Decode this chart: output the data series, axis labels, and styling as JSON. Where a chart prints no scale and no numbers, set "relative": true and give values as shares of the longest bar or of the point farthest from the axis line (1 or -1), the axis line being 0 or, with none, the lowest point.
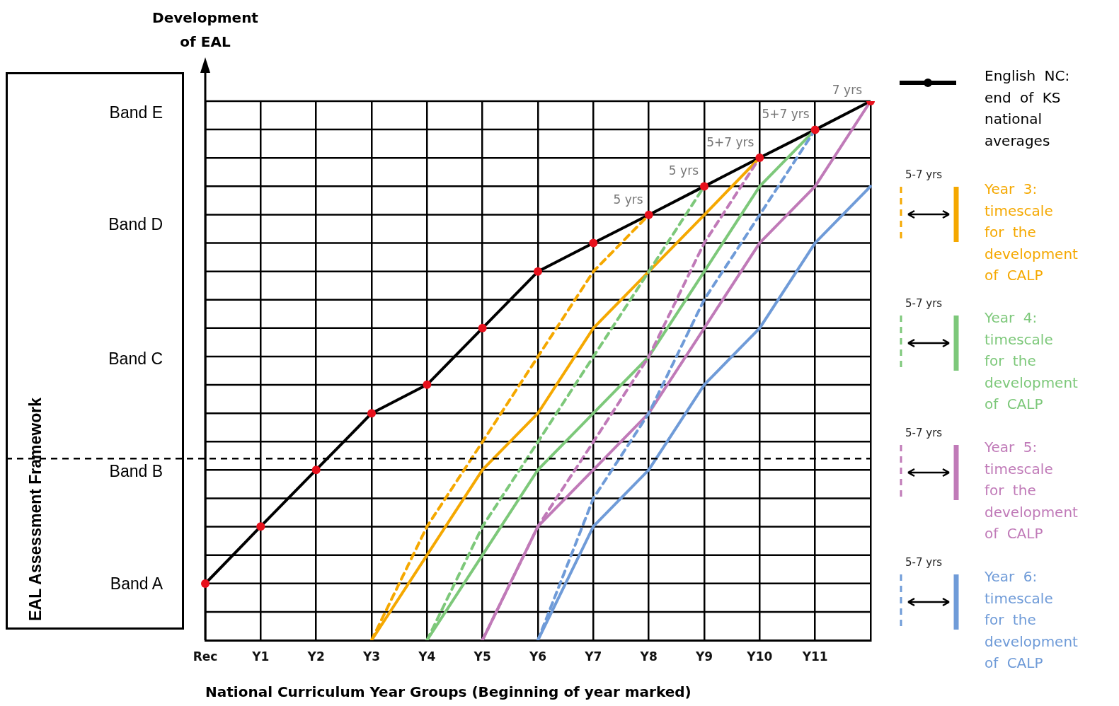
{
  "chart_data": {
    "type": "line",
    "xlabel": "National Curriculum Year Groups (Beginning of year marked)",
    "ylabel": "Development of EAL",
    "categories": [
      "Rec",
      "Y1",
      "Y2",
      "Y3",
      "Y4",
      "Y5",
      "Y6",
      "Y7",
      "Y8",
      "Y9",
      "Y10",
      "Y11",
      null
    ],
    "relative": true,
    "grid": true,
    "legend": "right",
    "ref_lines": [
      {
        "axis": "y",
        "value": 0.337,
        "label": null,
        "color": "#000000",
        "line_style": "dashed"
      }
    ],
    "annotations": [
      "EAL Assessment Framework",
      "5-7 yrs",
      "5-7 yrs",
      "5-7 yrs",
      "5-7 yrs",
      "7 yrs",
      "Band E",
      "Band D",
      "Band C",
      "Band B",
      "Band A",
      {
        "text": "5+7 yrs",
        "x": "Y11",
        "y": 0.947
      },
      {
        "text": "5+7 yrs",
        "x": "Y10",
        "y": 0.895
      },
      {
        "text": "5 yrs",
        "x": "Y9",
        "y": 0.842
      },
      {
        "text": "5 yrs",
        "x": "Y8",
        "y": 0.789
      }
    ],
    "series": [
      {
        "name": "English NC: end of KS national averages",
        "type": "line",
        "color": "#000000",
        "line_style": "solid",
        "marker": "none",
        "values": [
          0.105,
          0.211,
          0.316,
          0.421,
          0.474,
          0.579,
          0.684,
          0.737,
          0.789,
          0.842,
          0.895,
          0.947,
          1
        ]
      },
      {
        "type": "line",
        "color": "#f5a800",
        "line_style": "dashed",
        "marker": "none",
        "values": [
          null,
          null,
          null,
          0,
          0.211,
          0.368,
          0.526,
          0.684,
          0.789,
          null,
          null,
          null,
          null
        ]
      },
      {
        "name": "Year 3: timescale for the development of CALP",
        "type": "line",
        "color": "#f5a800",
        "line_style": "solid",
        "marker": "none",
        "values": [
          null,
          null,
          null,
          0,
          0.158,
          0.316,
          0.421,
          0.579,
          0.684,
          0.789,
          0.895,
          null,
          null
        ]
      },
      {
        "type": "line",
        "color": "#7dc87a",
        "line_style": "dashed",
        "marker": "none",
        "values": [
          null,
          null,
          null,
          null,
          0,
          0.211,
          0.368,
          0.526,
          0.684,
          0.842,
          null,
          null,
          null
        ]
      },
      {
        "name": "Year 4: timescale for the development of CALP",
        "type": "line",
        "color": "#7dc87a",
        "line_style": "solid",
        "marker": "none",
        "values": [
          null,
          null,
          null,
          null,
          0,
          0.158,
          0.316,
          0.421,
          0.526,
          0.684,
          0.842,
          0.947,
          null
        ]
      },
      {
        "type": "line",
        "color": "#c07ab8",
        "line_style": "dashed",
        "marker": "none",
        "values": [
          null,
          null,
          null,
          null,
          null,
          0,
          0.211,
          0.368,
          0.526,
          0.737,
          0.895,
          null,
          null
        ]
      },
      {
        "name": "Year 5: timescale for the development of CALP",
        "type": "line",
        "color": "#c07ab8",
        "line_style": "solid",
        "marker": "none",
        "values": [
          null,
          null,
          null,
          null,
          null,
          0,
          0.211,
          0.316,
          0.421,
          0.579,
          0.737,
          0.842,
          1
        ]
      },
      {
        "type": "line",
        "color": "#6f9bd8",
        "line_style": "dashed",
        "marker": "none",
        "values": [
          null,
          null,
          null,
          null,
          null,
          null,
          0,
          0.263,
          0.421,
          0.632,
          0.789,
          0.947,
          null
        ]
      },
      {
        "name": "Year 6: timescale for the development of CALP",
        "type": "line",
        "color": "#6f9bd8",
        "line_style": "solid",
        "marker": "none",
        "values": [
          null,
          null,
          null,
          null,
          null,
          null,
          0,
          0.211,
          0.316,
          0.474,
          0.579,
          0.737,
          0.842
        ]
      },
      {
        "type": "scatter",
        "color": "#e8101c",
        "marker": "circle",
        "values": [
          0.105,
          0.211,
          0.316,
          0.421,
          0.474,
          0.579,
          0.684,
          0.737,
          0.789,
          0.842,
          0.895,
          0.947,
          1
        ]
      }
    ]
  }
}
